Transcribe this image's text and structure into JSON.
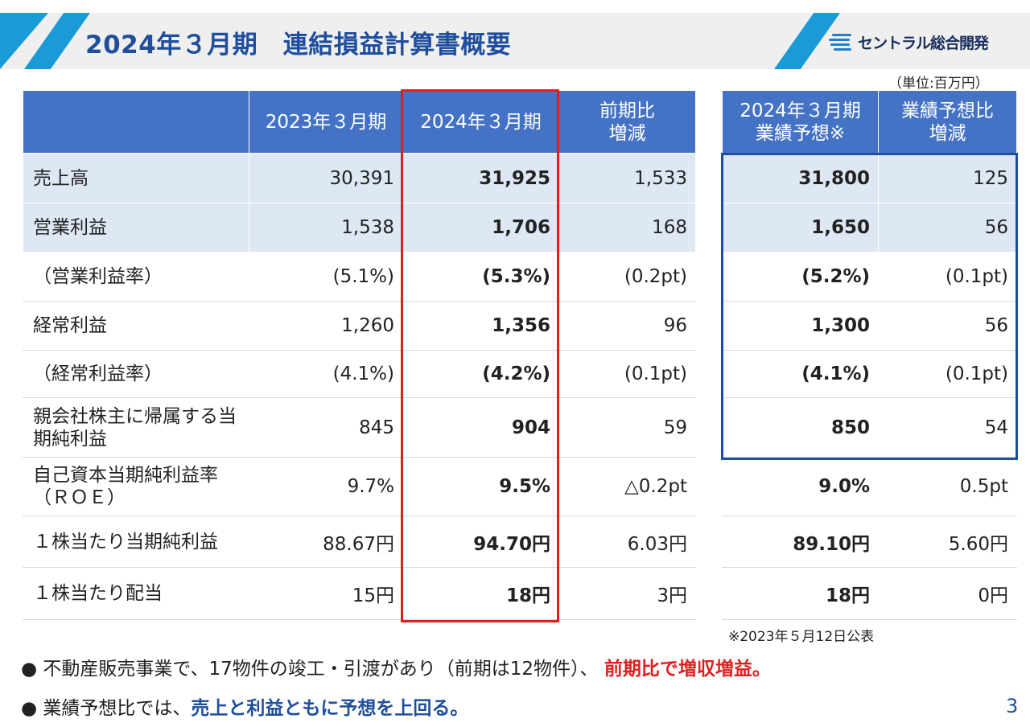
{
  "header": {
    "title": "2024年３月期　連結損益計算書概要",
    "logo_text": "セントラル総合開発",
    "unit": "（単位:百万円）"
  },
  "main_table": {
    "headers": [
      "",
      "2023年３月期",
      "2024年３月期",
      "前期比\n増減"
    ],
    "rows": [
      {
        "label": "売上高",
        "values": [
          "30,391",
          "31,925",
          "1,533"
        ]
      },
      {
        "label": "営業利益",
        "values": [
          "1,538",
          "1,706",
          "168"
        ]
      },
      {
        "label": "（営業利益率）",
        "values": [
          "(5.1%)",
          "(5.3%)",
          "(0.2pt)"
        ]
      },
      {
        "label": "経常利益",
        "values": [
          "1,260",
          "1,356",
          "96"
        ]
      },
      {
        "label": "（経常利益率）",
        "values": [
          "(4.1%)",
          "(4.2%)",
          "(0.1pt)"
        ]
      },
      {
        "label": "親会社株主に帰属する当期純利益",
        "values": [
          "845",
          "904",
          "59"
        ]
      },
      {
        "label": "自己資本当期純利益率（ＲＯＥ）",
        "values": [
          "9.7%",
          "9.5%",
          "△0.2pt"
        ]
      },
      {
        "label": "１株当たり当期純利益",
        "values": [
          "88.67円",
          "94.70円",
          "6.03円"
        ]
      },
      {
        "label": "１株当たり配当",
        "values": [
          "15円",
          "18円",
          "3円"
        ]
      }
    ]
  },
  "forecast_table": {
    "headers": [
      "2024年３月期\n業績予想※",
      "業績予想比\n増減"
    ],
    "rows": [
      [
        "31,800",
        "125"
      ],
      [
        "1,650",
        "56"
      ],
      [
        "(5.2%)",
        "(0.1pt)"
      ],
      [
        "1,300",
        "56"
      ],
      [
        "(4.1%)",
        "(0.1pt)"
      ],
      [
        "850",
        "54"
      ],
      [
        "9.0%",
        "0.5pt"
      ],
      [
        "89.10円",
        "5.60円"
      ],
      [
        "18円",
        "0円"
      ]
    ]
  },
  "note": "※2023年５月12日公表",
  "bullets": [
    {
      "marker": "●",
      "text": " 不動産販売事業で、17物件の竣工・引渡があり（前期は12物件）、 ",
      "emphasis": "前期比で増収増益。"
    },
    {
      "marker": "●",
      "text": "業績予想比では、",
      "emphasis": "売上と利益ともに予想を上回る。"
    }
  ],
  "page_number": "3",
  "colors": {
    "header_blue": "#4473c5",
    "row_blue": "#dee8f5",
    "title": "#1f4e9c",
    "red": "#e02020",
    "stripe": "#1a9bd7"
  }
}
